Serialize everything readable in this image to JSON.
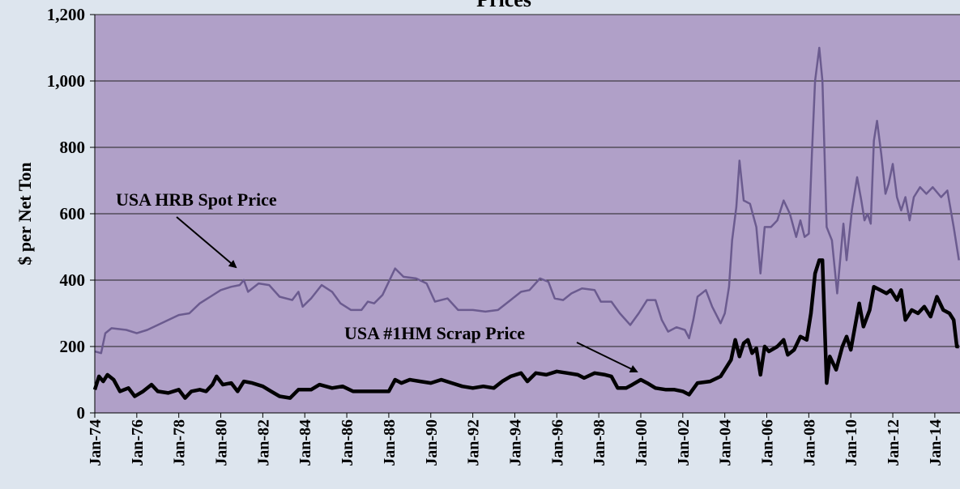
{
  "chart_data": {
    "type": "line",
    "title": "Prices",
    "ylabel": "$ per Net Ton",
    "xlim": [
      1974,
      2015.2
    ],
    "ylim": [
      0,
      1200
    ],
    "yticks": [
      0,
      200,
      400,
      600,
      800,
      {
        "value": 1000,
        "label": "1,000"
      },
      {
        "value": 1200,
        "label": "1,200"
      }
    ],
    "xticks": [
      {
        "value": 1974,
        "label": "Jan-74"
      },
      {
        "value": 1976,
        "label": "Jan-76"
      },
      {
        "value": 1978,
        "label": "Jan-78"
      },
      {
        "value": 1980,
        "label": "Jan-80"
      },
      {
        "value": 1982,
        "label": "Jan-82"
      },
      {
        "value": 1984,
        "label": "Jan-84"
      },
      {
        "value": 1986,
        "label": "Jan-86"
      },
      {
        "value": 1988,
        "label": "Jan-88"
      },
      {
        "value": 1990,
        "label": "Jan-90"
      },
      {
        "value": 1992,
        "label": "Jan-92"
      },
      {
        "value": 1994,
        "label": "Jan-94"
      },
      {
        "value": 1996,
        "label": "Jan-96"
      },
      {
        "value": 1998,
        "label": "Jan-98"
      },
      {
        "value": 2000,
        "label": "Jan-00"
      },
      {
        "value": 2002,
        "label": "Jan-02"
      },
      {
        "value": 2004,
        "label": "Jan-04"
      },
      {
        "value": 2006,
        "label": "Jan-06"
      },
      {
        "value": 2008,
        "label": "Jan-08"
      },
      {
        "value": 2010,
        "label": "Jan-10"
      },
      {
        "value": 2012,
        "label": "Jan-12"
      },
      {
        "value": 2014,
        "label": "Jan-14"
      }
    ],
    "grid": true,
    "series": [
      {
        "name": "USA HRB Spot Price",
        "color": "#6b5b8f",
        "width": 2.5,
        "x": [
          1974.0,
          1974.3,
          1974.5,
          1974.8,
          1975.5,
          1976.0,
          1976.5,
          1977.0,
          1977.5,
          1978.0,
          1978.5,
          1979.0,
          1979.5,
          1980.0,
          1980.5,
          1980.9,
          1981.1,
          1981.3,
          1981.8,
          1982.3,
          1982.8,
          1983.4,
          1983.7,
          1983.9,
          1984.3,
          1984.8,
          1985.3,
          1985.7,
          1986.2,
          1986.7,
          1987.0,
          1987.3,
          1987.7,
          1988.0,
          1988.3,
          1988.7,
          1989.3,
          1989.8,
          1990.2,
          1990.8,
          1991.3,
          1992.0,
          1992.6,
          1993.2,
          1993.8,
          1994.3,
          1994.7,
          1995.2,
          1995.6,
          1995.9,
          1996.3,
          1996.7,
          1997.2,
          1997.8,
          1998.1,
          1998.6,
          1999.0,
          1999.5,
          1999.9,
          2000.3,
          2000.7,
          2001.0,
          2001.3,
          2001.7,
          2002.1,
          2002.3,
          2002.5,
          2002.7,
          2003.1,
          2003.4,
          2003.8,
          2004.0,
          2004.2,
          2004.35,
          2004.55,
          2004.7,
          2004.9,
          2005.2,
          2005.5,
          2005.7,
          2005.9,
          2006.2,
          2006.5,
          2006.8,
          2007.1,
          2007.4,
          2007.6,
          2007.8,
          2008.0,
          2008.15,
          2008.3,
          2008.5,
          2008.65,
          2008.85,
          2009.1,
          2009.35,
          2009.65,
          2009.8,
          2010.05,
          2010.3,
          2010.5,
          2010.65,
          2010.8,
          2010.95,
          2011.1,
          2011.25,
          2011.45,
          2011.65,
          2011.8,
          2012.0,
          2012.2,
          2012.4,
          2012.6,
          2012.8,
          2013.0,
          2013.3,
          2013.6,
          2013.9,
          2014.3,
          2014.6,
          2014.9,
          2015.15
        ],
        "values": [
          185,
          180,
          240,
          255,
          250,
          240,
          250,
          265,
          280,
          295,
          300,
          330,
          350,
          370,
          380,
          385,
          400,
          365,
          390,
          385,
          350,
          340,
          365,
          320,
          345,
          385,
          365,
          330,
          310,
          310,
          335,
          330,
          355,
          395,
          435,
          410,
          405,
          390,
          335,
          345,
          310,
          310,
          305,
          310,
          340,
          365,
          370,
          405,
          395,
          345,
          340,
          360,
          375,
          370,
          335,
          335,
          300,
          265,
          300,
          340,
          340,
          280,
          245,
          258,
          250,
          225,
          280,
          350,
          370,
          320,
          270,
          300,
          380,
          520,
          620,
          760,
          640,
          630,
          560,
          420,
          560,
          560,
          580,
          640,
          600,
          530,
          580,
          530,
          540,
          780,
          1000,
          1100,
          1000,
          560,
          520,
          360,
          570,
          460,
          610,
          710,
          640,
          580,
          600,
          570,
          820,
          880,
          780,
          660,
          690,
          750,
          650,
          610,
          650,
          580,
          650,
          680,
          660,
          680,
          650,
          670,
          560,
          460
        ]
      },
      {
        "name": "USA #1HM Scrap Price",
        "color": "#000000",
        "width": 4.5,
        "x": [
          1974.0,
          1974.2,
          1974.4,
          1974.6,
          1974.9,
          1975.2,
          1975.6,
          1975.9,
          1976.3,
          1976.7,
          1977.0,
          1977.5,
          1978.0,
          1978.3,
          1978.6,
          1979.0,
          1979.3,
          1979.6,
          1979.8,
          1980.1,
          1980.5,
          1980.8,
          1981.1,
          1981.5,
          1982.0,
          1982.4,
          1982.8,
          1983.3,
          1983.7,
          1984.3,
          1984.7,
          1985.3,
          1985.8,
          1986.3,
          1986.8,
          1987.5,
          1988.0,
          1988.3,
          1988.6,
          1989.0,
          1989.5,
          1990.0,
          1990.5,
          1991.0,
          1991.5,
          1992.0,
          1992.5,
          1993.0,
          1993.4,
          1993.8,
          1994.3,
          1994.6,
          1995.0,
          1995.5,
          1996.0,
          1996.5,
          1997.0,
          1997.3,
          1997.8,
          1998.3,
          1998.6,
          1998.9,
          1999.3,
          1999.6,
          2000.0,
          2000.3,
          2000.7,
          2001.2,
          2001.6,
          2002.0,
          2002.3,
          2002.7,
          2003.3,
          2003.8,
          2004.1,
          2004.3,
          2004.5,
          2004.7,
          2004.9,
          2005.1,
          2005.3,
          2005.5,
          2005.7,
          2005.9,
          2006.1,
          2006.5,
          2006.8,
          2007.0,
          2007.3,
          2007.6,
          2007.9,
          2008.1,
          2008.3,
          2008.5,
          2008.65,
          2008.85,
          2009.0,
          2009.3,
          2009.6,
          2009.8,
          2010.0,
          2010.2,
          2010.4,
          2010.6,
          2010.9,
          2011.1,
          2011.4,
          2011.7,
          2011.9,
          2012.2,
          2012.4,
          2012.6,
          2012.9,
          2013.2,
          2013.5,
          2013.8,
          2014.1,
          2014.4,
          2014.7,
          2014.9,
          2015.05,
          2015.15
        ],
        "values": [
          70,
          110,
          95,
          115,
          100,
          65,
          75,
          50,
          65,
          85,
          65,
          60,
          70,
          45,
          65,
          70,
          65,
          85,
          110,
          85,
          90,
          65,
          95,
          90,
          80,
          65,
          50,
          45,
          70,
          70,
          85,
          75,
          80,
          65,
          65,
          65,
          65,
          100,
          90,
          100,
          95,
          90,
          100,
          90,
          80,
          75,
          80,
          75,
          95,
          110,
          120,
          95,
          120,
          115,
          125,
          120,
          115,
          105,
          120,
          115,
          110,
          75,
          75,
          85,
          100,
          90,
          75,
          70,
          70,
          65,
          55,
          90,
          95,
          110,
          140,
          160,
          220,
          170,
          210,
          220,
          180,
          195,
          115,
          200,
          185,
          200,
          220,
          175,
          190,
          230,
          220,
          300,
          420,
          460,
          460,
          90,
          170,
          130,
          200,
          230,
          190,
          260,
          330,
          260,
          310,
          380,
          370,
          360,
          370,
          340,
          370,
          280,
          310,
          300,
          320,
          290,
          350,
          310,
          300,
          280,
          200,
          200
        ]
      }
    ]
  }
}
